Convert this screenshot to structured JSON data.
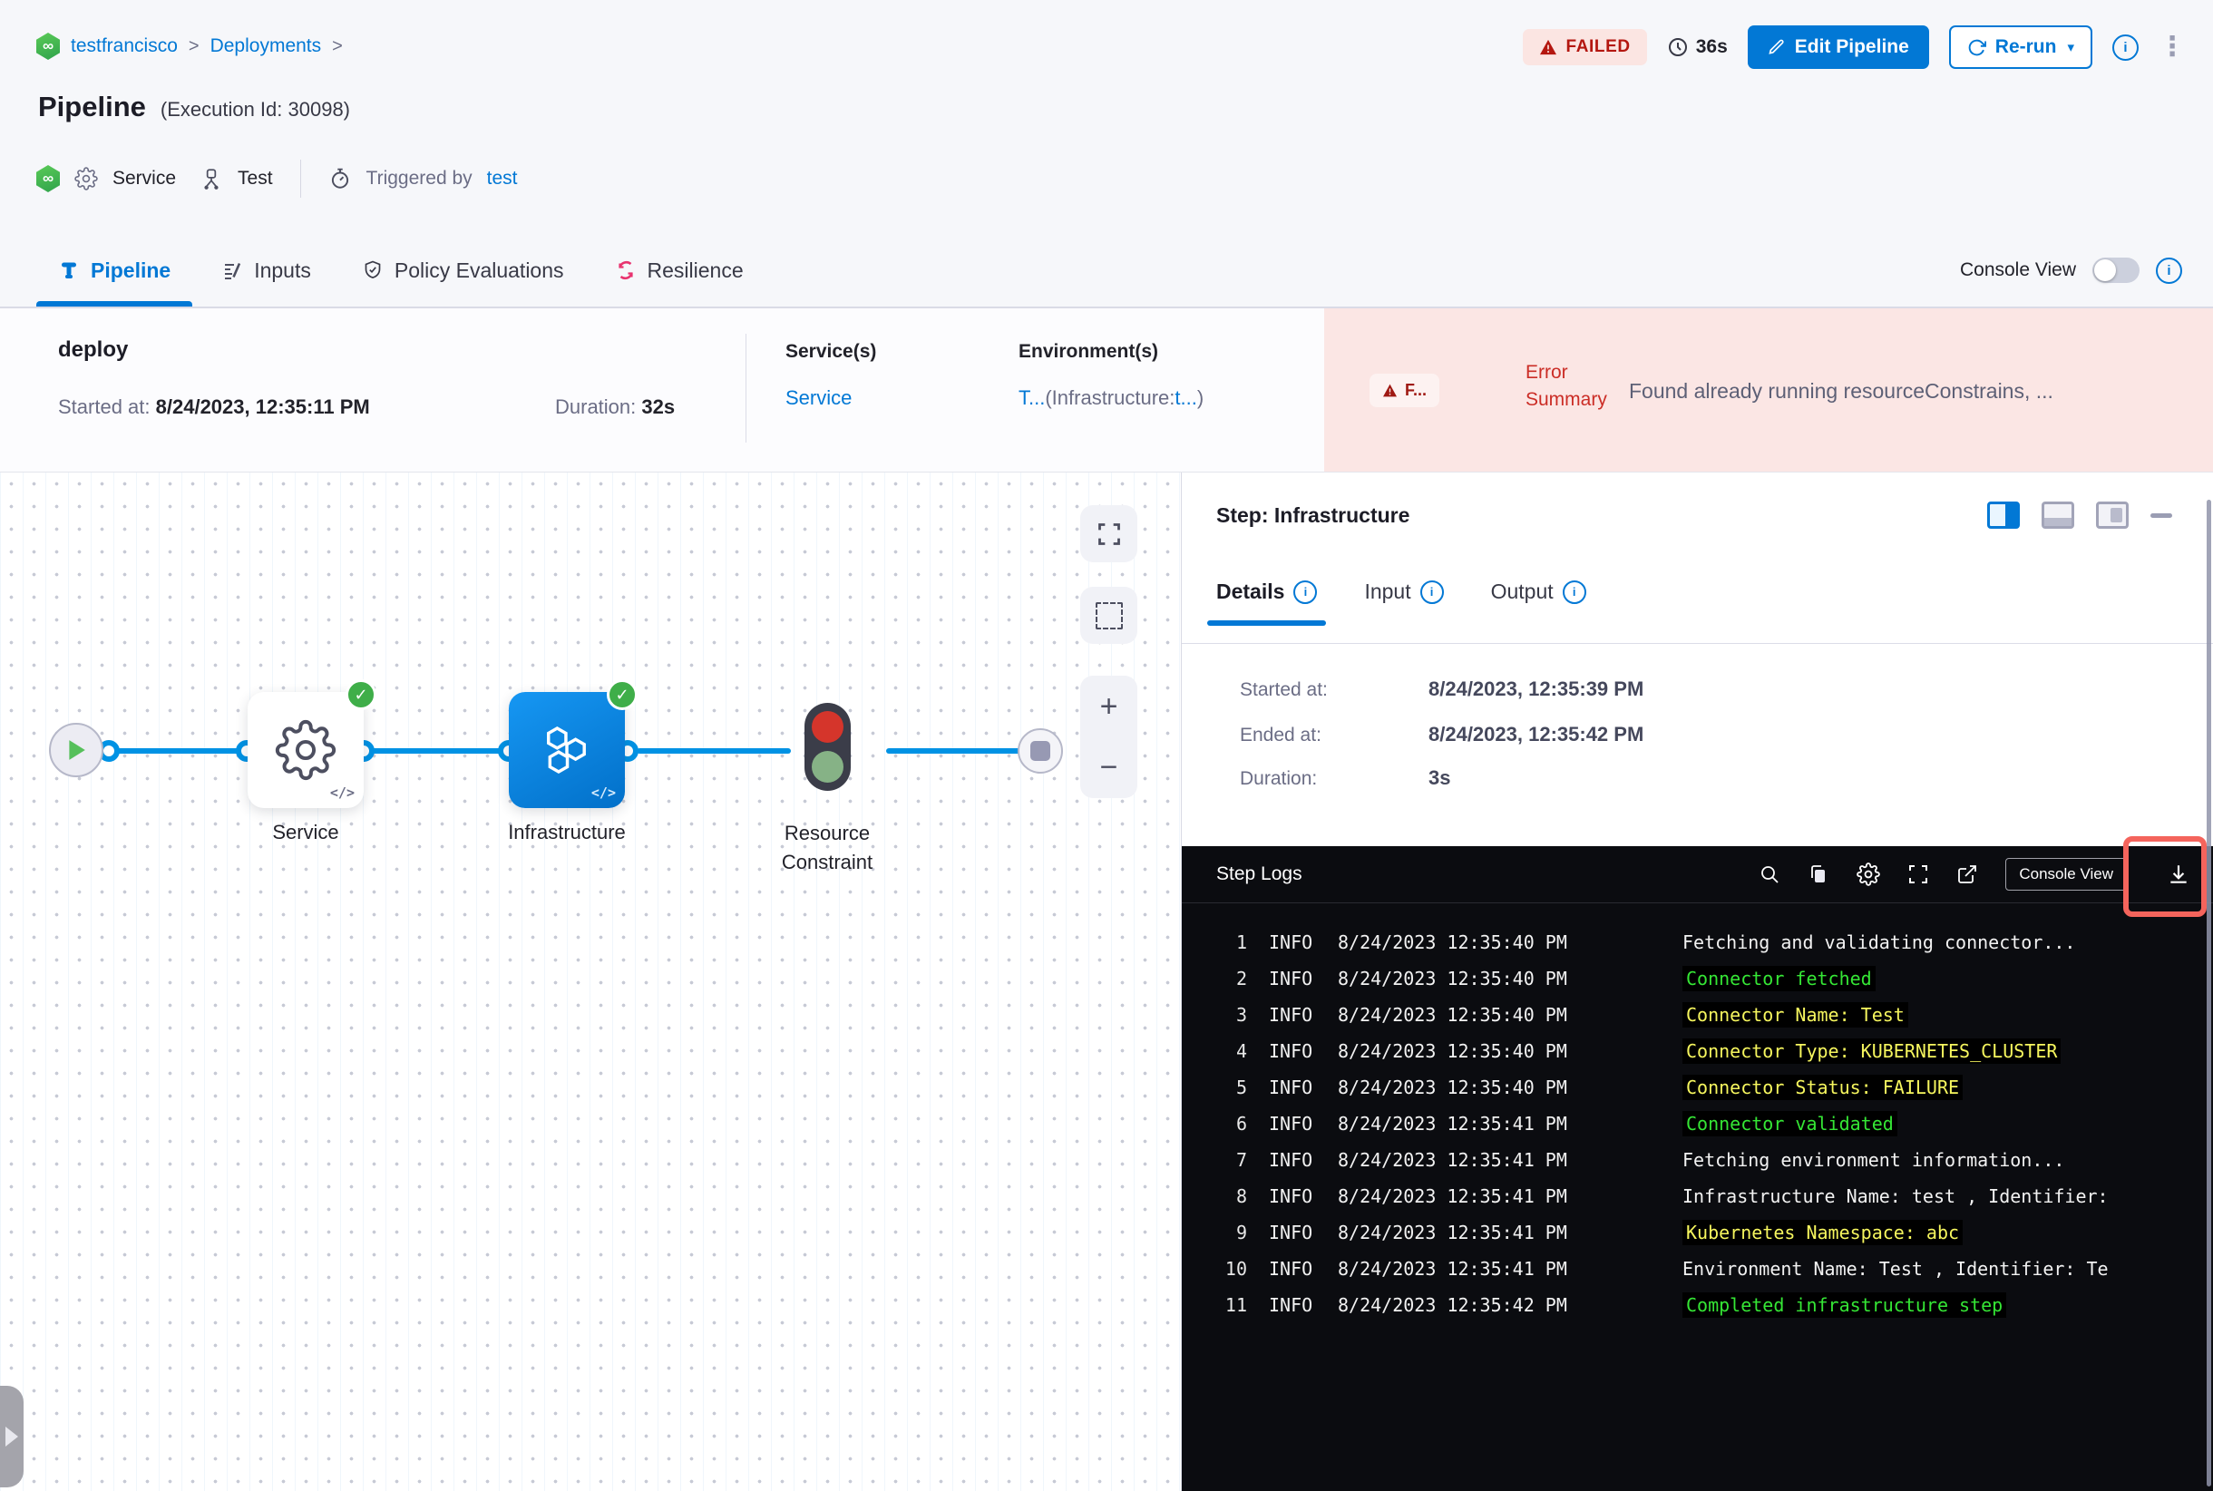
{
  "breadcrumb": {
    "project": "testfrancisco",
    "section": "Deployments",
    "sep": ">"
  },
  "header": {
    "title": "Pipeline",
    "execution_id": "(Execution Id: 30098)",
    "status_badge": "FAILED",
    "elapsed": "36s",
    "edit_button": "Edit Pipeline",
    "rerun_button": "Re-run",
    "service_label": "Service",
    "env_label": "Test",
    "triggered_by_label": "Triggered by",
    "triggered_by_value": "test"
  },
  "main_tabs": [
    {
      "label": "Pipeline"
    },
    {
      "label": "Inputs"
    },
    {
      "label": "Policy Evaluations"
    },
    {
      "label": "Resilience"
    }
  ],
  "console_view_label": "Console View",
  "summary": {
    "stage_name": "deploy",
    "started_label": "Started at:",
    "started_value": "8/24/2023, 12:35:11 PM",
    "duration_label": "Duration:",
    "duration_value": "32s",
    "services_label": "Service(s)",
    "services_value": "Service",
    "environments_label": "Environment(s)",
    "env_link1": "T...",
    "env_mid": "(Infrastructure:",
    "env_link2": "t...",
    "env_end": ")",
    "error_badge": "F...",
    "error_summary_label": "Error Summary",
    "error_summary_text": "Found already running resourceConstrains, ..."
  },
  "graph": {
    "nodes": [
      {
        "label": "Service"
      },
      {
        "label": "Infrastructure"
      },
      {
        "label": "Resource Constraint"
      }
    ],
    "code_glyph": "</>",
    "zoom_in": "+",
    "zoom_out": "−"
  },
  "step_panel": {
    "title": "Step: Infrastructure",
    "tabs": [
      {
        "label": "Details"
      },
      {
        "label": "Input"
      },
      {
        "label": "Output"
      }
    ],
    "details": {
      "started_label": "Started at:",
      "started_value": "8/24/2023, 12:35:39 PM",
      "ended_label": "Ended at:",
      "ended_value": "8/24/2023, 12:35:42 PM",
      "duration_label": "Duration:",
      "duration_value": "3s"
    }
  },
  "logs": {
    "title": "Step Logs",
    "console_view_button": "Console View",
    "lines": [
      {
        "num": "1",
        "level": "INFO",
        "time": "8/24/2023 12:35:40 PM",
        "msg": "Fetching and validating connector...",
        "color": "white"
      },
      {
        "num": "2",
        "level": "INFO",
        "time": "8/24/2023 12:35:40 PM",
        "msg": "Connector fetched",
        "color": "green"
      },
      {
        "num": "3",
        "level": "INFO",
        "time": "8/24/2023 12:35:40 PM",
        "msg": "Connector Name: Test",
        "color": "yellow"
      },
      {
        "num": "4",
        "level": "INFO",
        "time": "8/24/2023 12:35:40 PM",
        "msg": "Connector Type: KUBERNETES_CLUSTER",
        "color": "yellow"
      },
      {
        "num": "5",
        "level": "INFO",
        "time": "8/24/2023 12:35:40 PM",
        "msg": "Connector Status: FAILURE",
        "color": "yellow"
      },
      {
        "num": "6",
        "level": "INFO",
        "time": "8/24/2023 12:35:41 PM",
        "msg": "Connector validated",
        "color": "green"
      },
      {
        "num": "7",
        "level": "INFO",
        "time": "8/24/2023 12:35:41 PM",
        "msg": "Fetching environment information...",
        "color": "white"
      },
      {
        "num": "8",
        "level": "INFO",
        "time": "8/24/2023 12:35:41 PM",
        "msg": "Infrastructure Name: test , Identifier: ",
        "color": "white"
      },
      {
        "num": "9",
        "level": "INFO",
        "time": "8/24/2023 12:35:41 PM",
        "msg": "Kubernetes Namespace: abc",
        "color": "yellow"
      },
      {
        "num": "10",
        "level": "INFO",
        "time": "8/24/2023 12:35:41 PM",
        "msg": "Environment Name: Test , Identifier: Te",
        "color": "white"
      },
      {
        "num": "11",
        "level": "INFO",
        "time": "8/24/2023 12:35:42 PM",
        "msg": "Completed infrastructure step",
        "color": "green"
      }
    ]
  },
  "icons": {
    "harness_logo": "∞",
    "kebab_menu": "⋮",
    "caret_down": "▾",
    "info": "i",
    "check": "✓"
  },
  "colors": {
    "accent_blue": "#0278d5",
    "line_blue": "#0092e4",
    "failed_red": "#b41710",
    "failed_bg": "#fbe5e2",
    "error_band_bg": "#fbe6e4",
    "success_green": "#3fae49",
    "log_green": "#35e635",
    "log_yellow": "#f6f65e",
    "highlight_red_box": "#f4645c"
  }
}
